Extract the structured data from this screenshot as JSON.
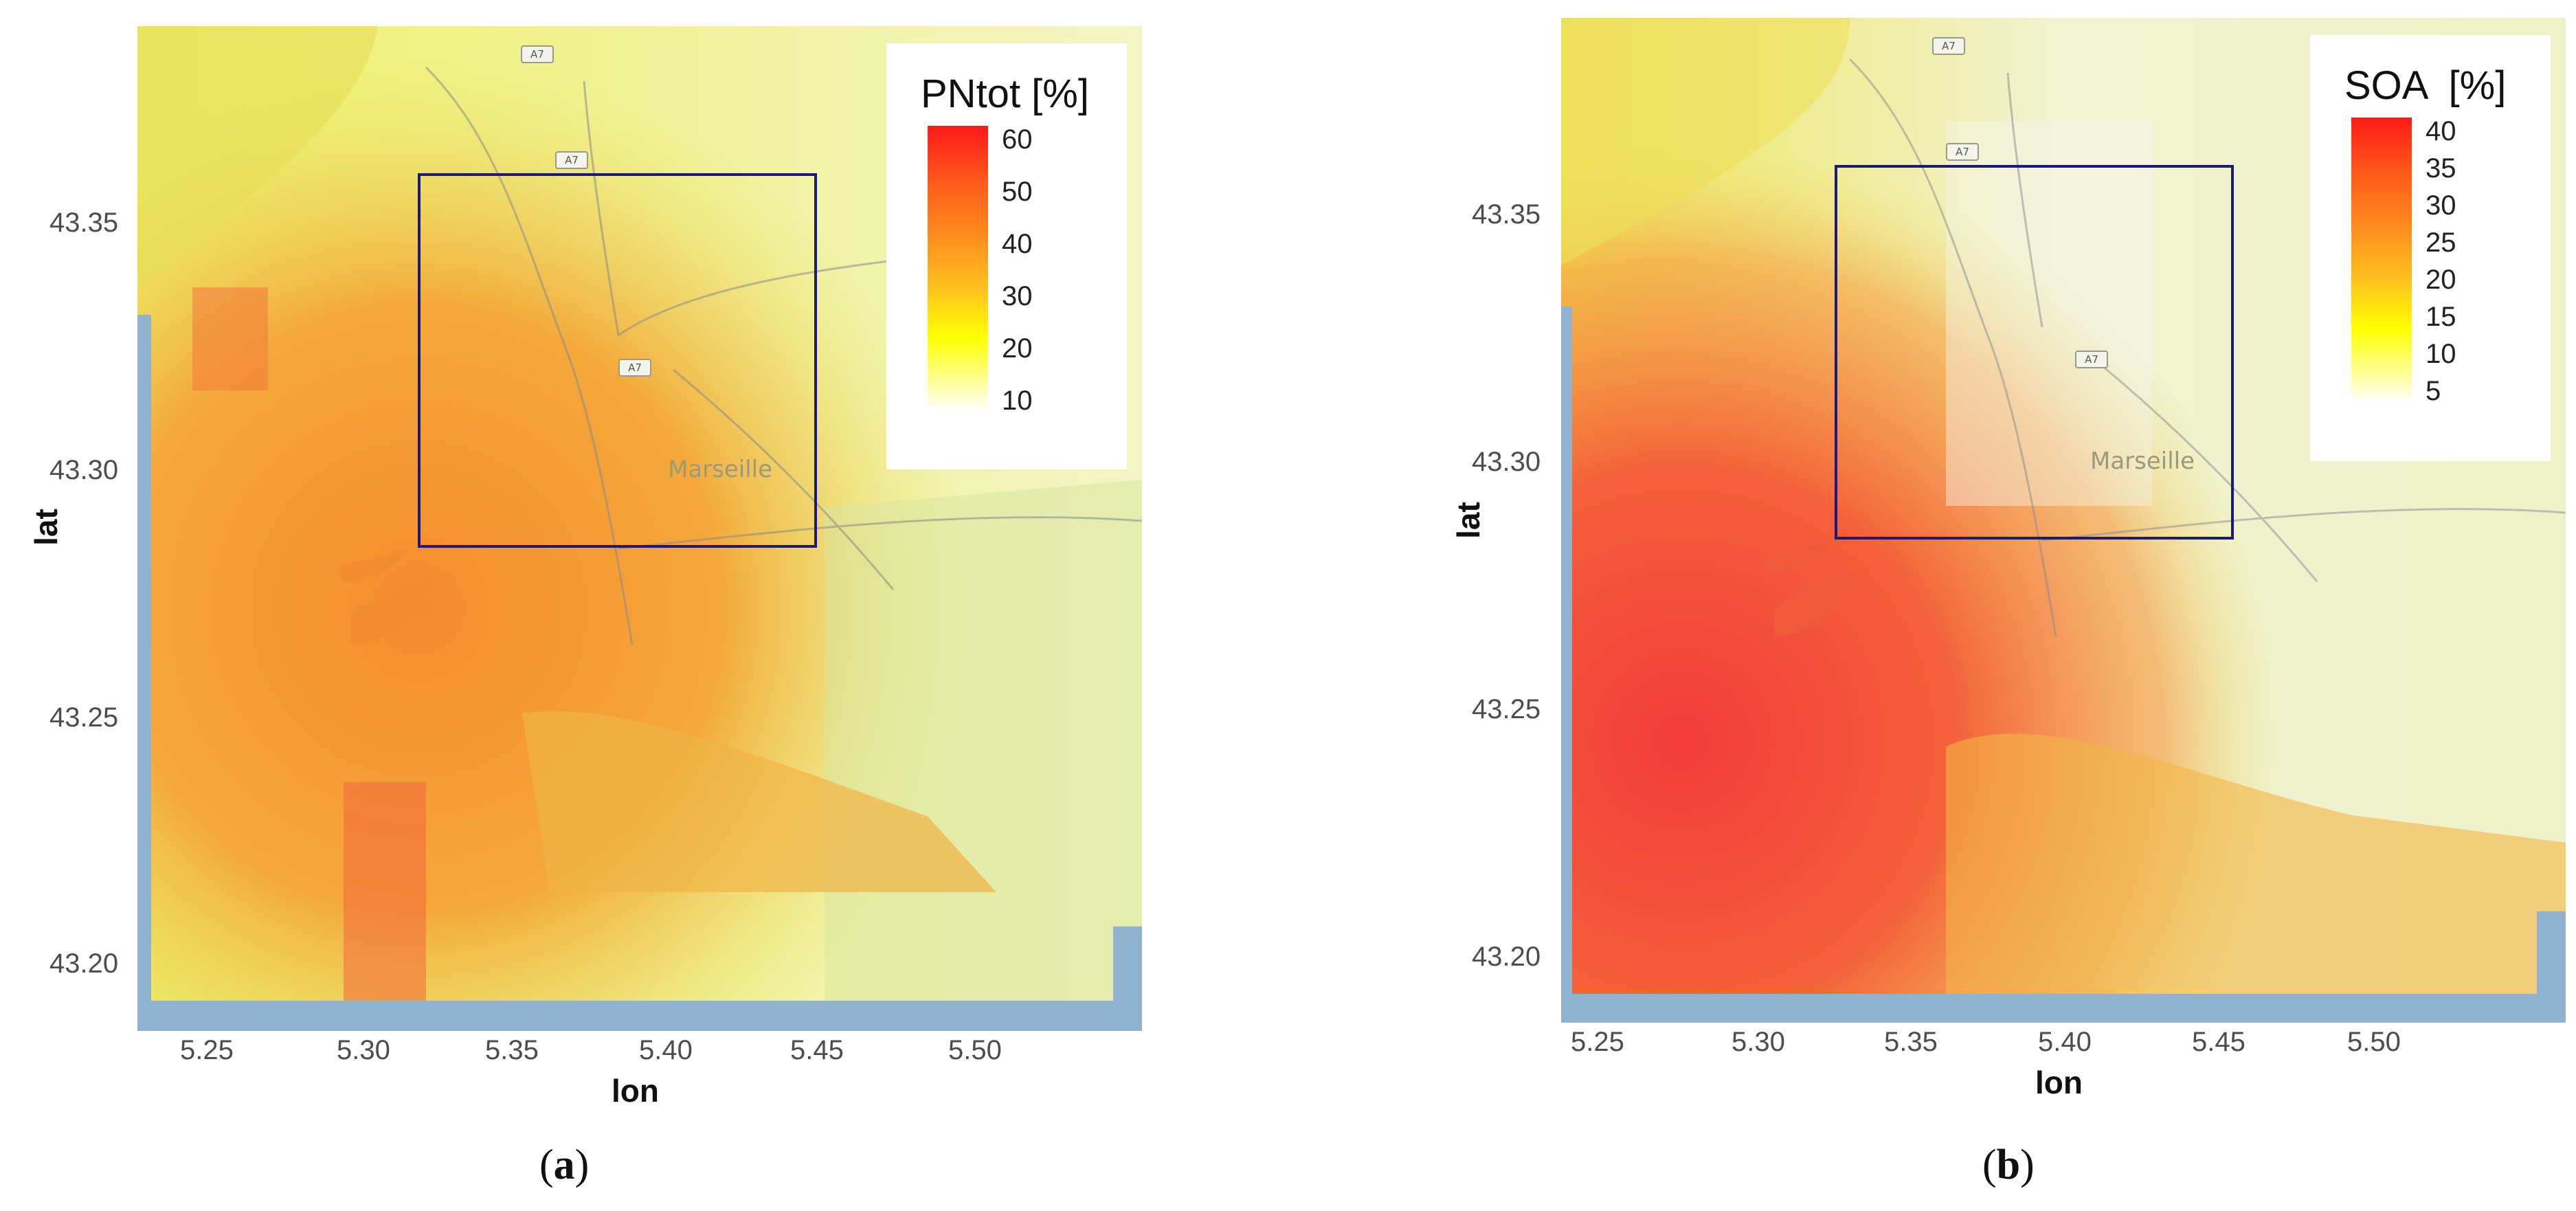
{
  "panels": [
    {
      "id": "a",
      "label_prefix": "(",
      "label_letter": "a",
      "label_suffix": ")",
      "legend": {
        "title": "PNtot [%]",
        "ticks": [
          "60",
          "50",
          "40",
          "30",
          "20",
          "10"
        ],
        "max": 60
      },
      "city_label": "Marseille",
      "road_label": "A7",
      "xlabel": "lon",
      "ylabel": "lat",
      "x_ticks": [
        "5.25",
        "5.30",
        "5.35",
        "5.40",
        "5.45",
        "5.50"
      ],
      "y_ticks": [
        "43.35",
        "43.30",
        "43.25",
        "43.20"
      ]
    },
    {
      "id": "b",
      "label_prefix": "(",
      "label_letter": "b",
      "label_suffix": ")",
      "legend": {
        "title": "SOA  [%]",
        "ticks": [
          "40",
          "35",
          "30",
          "25",
          "20",
          "15",
          "10",
          "5"
        ],
        "max": 40
      },
      "city_label": "Marseille",
      "road_label": "A7",
      "xlabel": "lon",
      "ylabel": "lat",
      "x_ticks": [
        "5.25",
        "5.30",
        "5.35",
        "5.40",
        "5.45",
        "5.50"
      ],
      "y_ticks": [
        "43.35",
        "43.30",
        "43.25",
        "43.20"
      ]
    }
  ],
  "colors": {
    "high": "#ff1a1a",
    "mid": "#ff9020",
    "low": "#ffff00",
    "zero": "#fffff2",
    "frame": "#1a1a7a",
    "sea_edge": "#8fb3cf"
  }
}
